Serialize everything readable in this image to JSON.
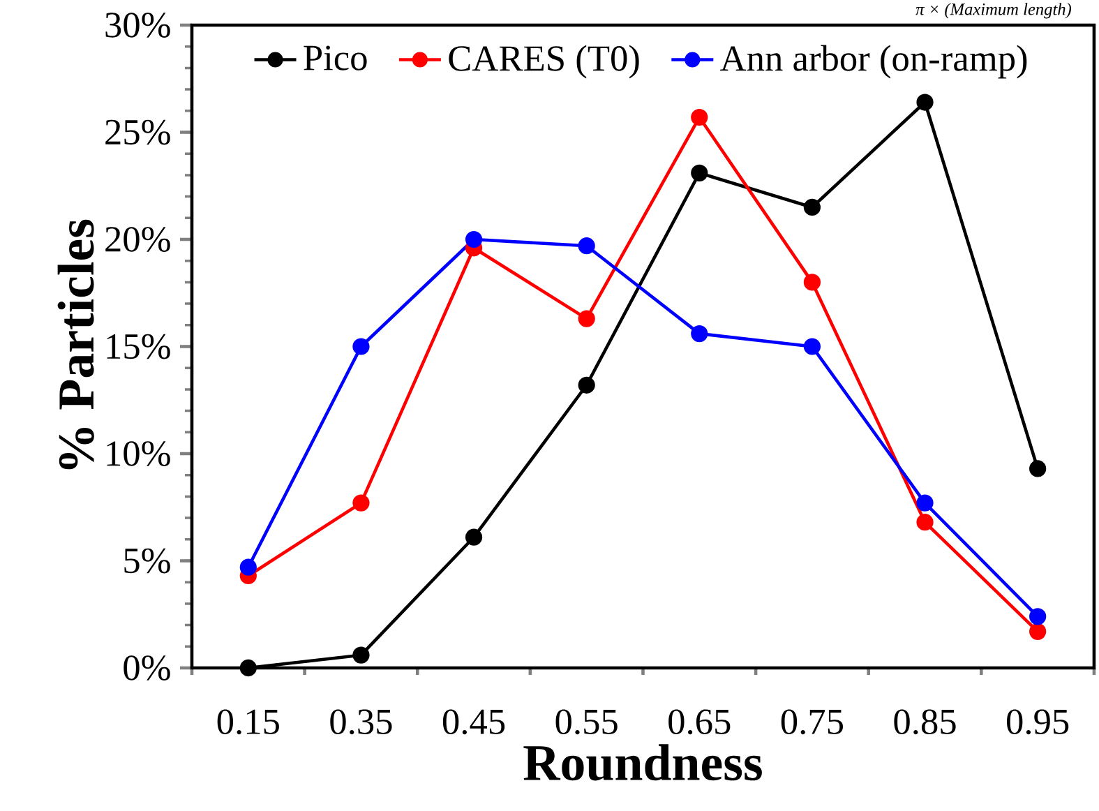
{
  "chart_data": {
    "type": "line",
    "xlabel": "Roundness",
    "ylabel": "% Particles",
    "annotations": [
      "π × (Maximum length)"
    ],
    "categories": [
      "0.15",
      "0.35",
      "0.45",
      "0.55",
      "0.65",
      "0.75",
      "0.85",
      "0.95"
    ],
    "ylim": [
      0,
      30
    ],
    "yticks": [
      {
        "value": 0,
        "label": "0%"
      },
      {
        "value": 5,
        "label": "5%"
      },
      {
        "value": 10,
        "label": "10%"
      },
      {
        "value": 15,
        "label": "15%"
      },
      {
        "value": 20,
        "label": "20%"
      },
      {
        "value": 25,
        "label": "25%"
      },
      {
        "value": 30,
        "label": "30%"
      }
    ],
    "series": [
      {
        "name": "Pico",
        "color": "#000000",
        "values": [
          0,
          0.6,
          6.1,
          13.2,
          23.1,
          21.5,
          26.4,
          9.3
        ]
      },
      {
        "name": "CARES (T0)",
        "color": "#ff0000",
        "values": [
          4.3,
          7.7,
          19.6,
          16.3,
          25.7,
          18.0,
          6.8,
          1.7
        ]
      },
      {
        "name": "Ann arbor (on-ramp)",
        "color": "#0000ff",
        "values": [
          4.7,
          15.0,
          20.0,
          19.7,
          15.6,
          15.0,
          7.7,
          2.4
        ]
      }
    ],
    "legend": "top",
    "marker": "circle",
    "line_style": "solid",
    "grid": false
  }
}
